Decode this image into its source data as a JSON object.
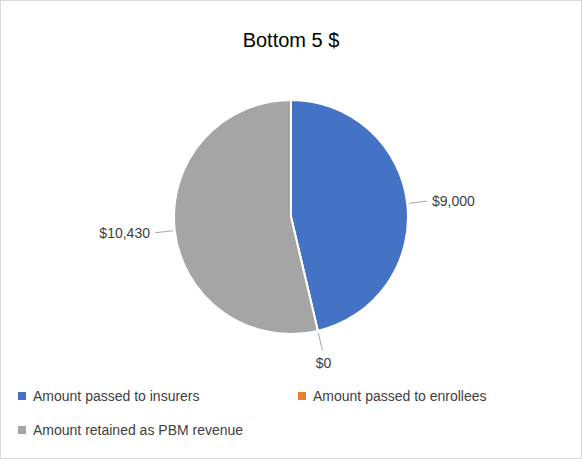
{
  "chart_data": {
    "type": "pie",
    "title": "Bottom 5 $",
    "categories": [
      "Amount passed to insurers",
      "Amount passed to enrollees",
      "Amount retained as PBM revenue"
    ],
    "values": [
      9000,
      0,
      10430
    ],
    "value_labels": [
      "$9,000",
      "$0",
      "$10,430"
    ],
    "colors": [
      "#4472c4",
      "#ed7d31",
      "#a5a5a5"
    ],
    "data_labels": true,
    "legend": "bottom"
  }
}
